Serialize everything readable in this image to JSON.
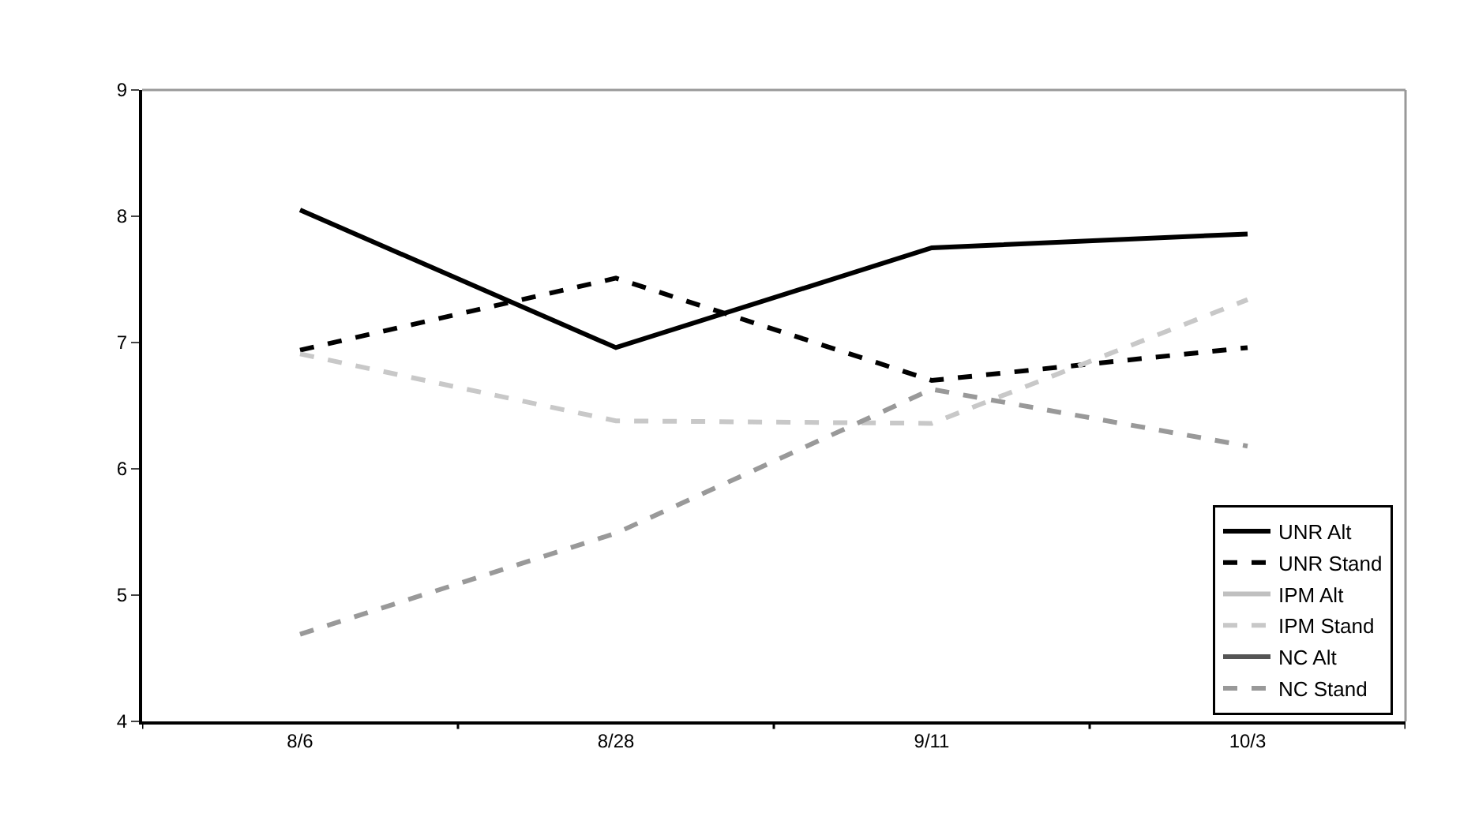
{
  "chart_data": {
    "type": "line",
    "categories": [
      "8/6",
      "8/28",
      "9/11",
      "10/3"
    ],
    "series": [
      {
        "name": "UNR Alt",
        "color": "#000000",
        "line_style": "solid",
        "values": [
          8.05,
          6.96,
          7.75,
          7.86
        ]
      },
      {
        "name": "UNR Stand",
        "color": "#000000",
        "line_style": "dashed",
        "values": [
          6.94,
          7.51,
          6.7,
          6.96
        ]
      },
      {
        "name": "IPM Alt",
        "color": "#c0c0c0",
        "line_style": "solid",
        "values": [
          null,
          null,
          null,
          null
        ]
      },
      {
        "name": "IPM Stand",
        "color": "#c8c8c8",
        "line_style": "dashed",
        "values": [
          6.91,
          6.38,
          6.36,
          7.34
        ]
      },
      {
        "name": "NC Alt",
        "color": "#555555",
        "line_style": "solid",
        "values": [
          null,
          null,
          null,
          null
        ]
      },
      {
        "name": "NC Stand",
        "color": "#999999",
        "line_style": "dashed",
        "values": [
          4.69,
          5.49,
          6.63,
          6.18
        ]
      }
    ],
    "ylim": [
      4,
      9
    ],
    "yticks": [
      4,
      5,
      6,
      7,
      8,
      9
    ],
    "grid": false,
    "legend": "bottom right",
    "marker": "none"
  }
}
